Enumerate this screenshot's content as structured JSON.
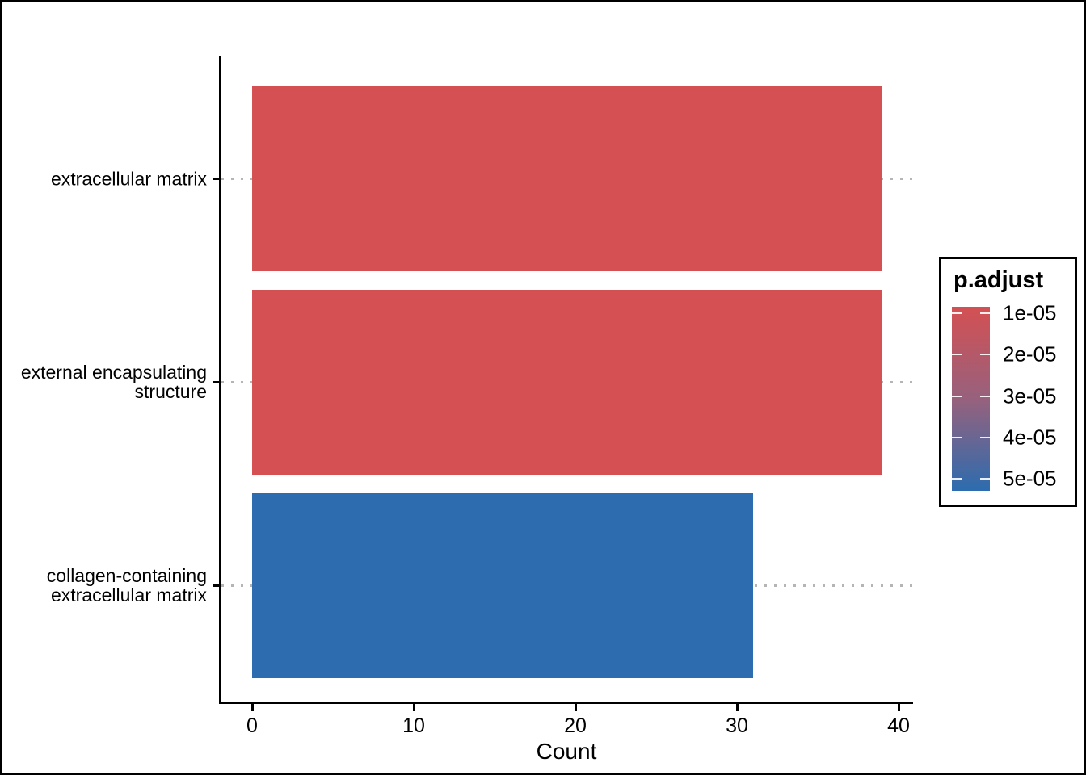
{
  "chart_data": {
    "type": "bar",
    "orientation": "horizontal",
    "title": "",
    "xlabel": "Count",
    "categories": [
      "extracellular matrix",
      "external encapsulating structure",
      "collagen-containing extracellular matrix"
    ],
    "values": [
      39,
      39,
      31
    ],
    "bar_colors": [
      "#D45053",
      "#D45053",
      "#2C6CAF"
    ],
    "x_ticks": [
      "0",
      "10",
      "20",
      "30",
      "40"
    ],
    "x_tick_values": [
      0,
      10,
      20,
      30,
      40
    ],
    "xlim": [
      0,
      40.9
    ],
    "grid": "dotted horizontal line at each category",
    "legend_position": "right"
  },
  "labels": {
    "y_label_lines": [
      [
        "extracellular matrix"
      ],
      [
        "external encapsulating",
        "structure"
      ],
      [
        "collagen-containing",
        "extracellular matrix"
      ]
    ]
  },
  "legend": {
    "title": "p.adjust",
    "type": "color-gradient",
    "ticks": [
      "1e-05",
      "2e-05",
      "3e-05",
      "4e-05",
      "5e-05"
    ],
    "gradient_top_color": "#D45053",
    "gradient_mid_color": "#97617D",
    "gradient_bottom_color": "#2C6CAF"
  },
  "colors": {
    "bar_red": "#D45053",
    "bar_blue": "#2C6CAF",
    "gridline_grey": "#b5b5b5",
    "axis_black": "#000000",
    "background": "#ffffff"
  }
}
